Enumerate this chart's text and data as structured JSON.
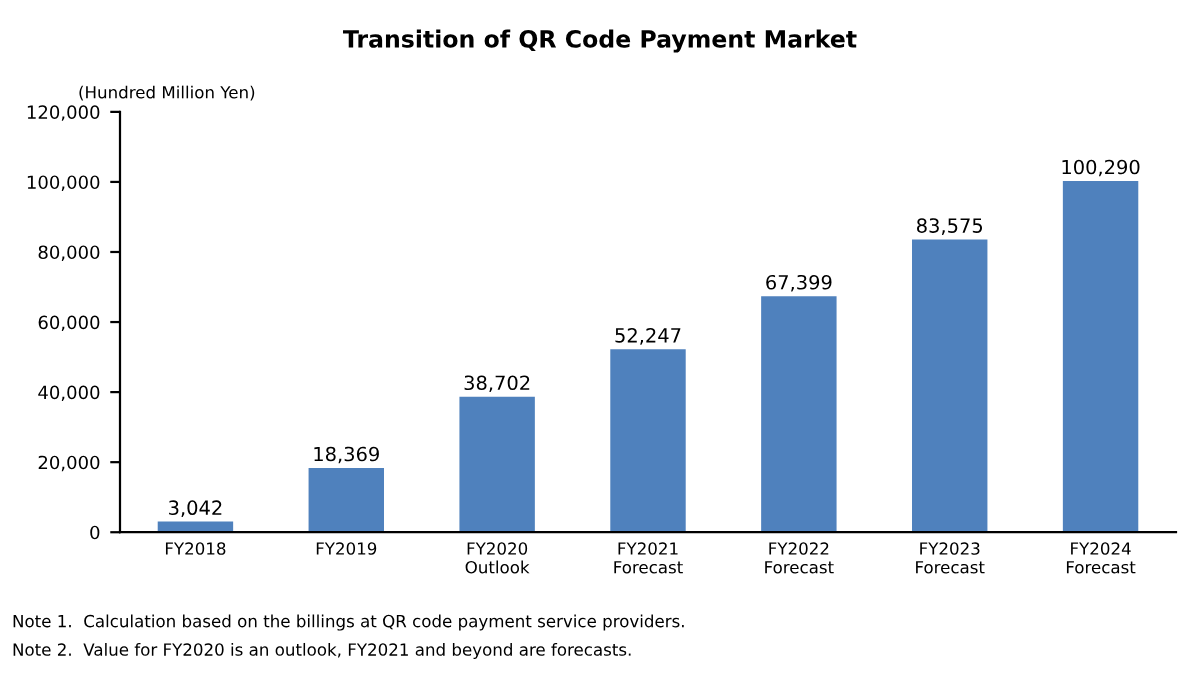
{
  "chart_data": {
    "type": "bar",
    "title": "Transition of QR Code Payment Market",
    "ylabel": "(Hundred Million Yen)",
    "categories": [
      "FY2018",
      "FY2019",
      "FY2020\nOutlook",
      "FY2021\nForecast",
      "FY2022\nForecast",
      "FY2023\nForecast",
      "FY2024\nForecast"
    ],
    "values": [
      3042,
      18369,
      38702,
      52247,
      67399,
      83575,
      100290
    ],
    "color": "#4f81bd",
    "ylim": [
      0,
      120000
    ],
    "yticks": [
      {
        "value": 0,
        "label": "0"
      },
      {
        "value": 20000,
        "label": "20,000"
      },
      {
        "value": 40000,
        "label": "40,000"
      },
      {
        "value": 60000,
        "label": "60,000"
      },
      {
        "value": 80000,
        "label": "80,000"
      },
      {
        "value": 100000,
        "label": "100,000"
      },
      {
        "value": 120000,
        "label": "120,000"
      }
    ],
    "value_labels": [
      "3,042",
      "18,369",
      "38,702",
      "52,247",
      "67,399",
      "83,575",
      "100,290"
    ],
    "grid": false,
    "legend": false,
    "annotations": [
      "Note 1.  Calculation based on the billings at QR code payment service providers.",
      "Note 2.  Value for FY2020 is an outlook, FY2021 and beyond are forecasts."
    ]
  }
}
